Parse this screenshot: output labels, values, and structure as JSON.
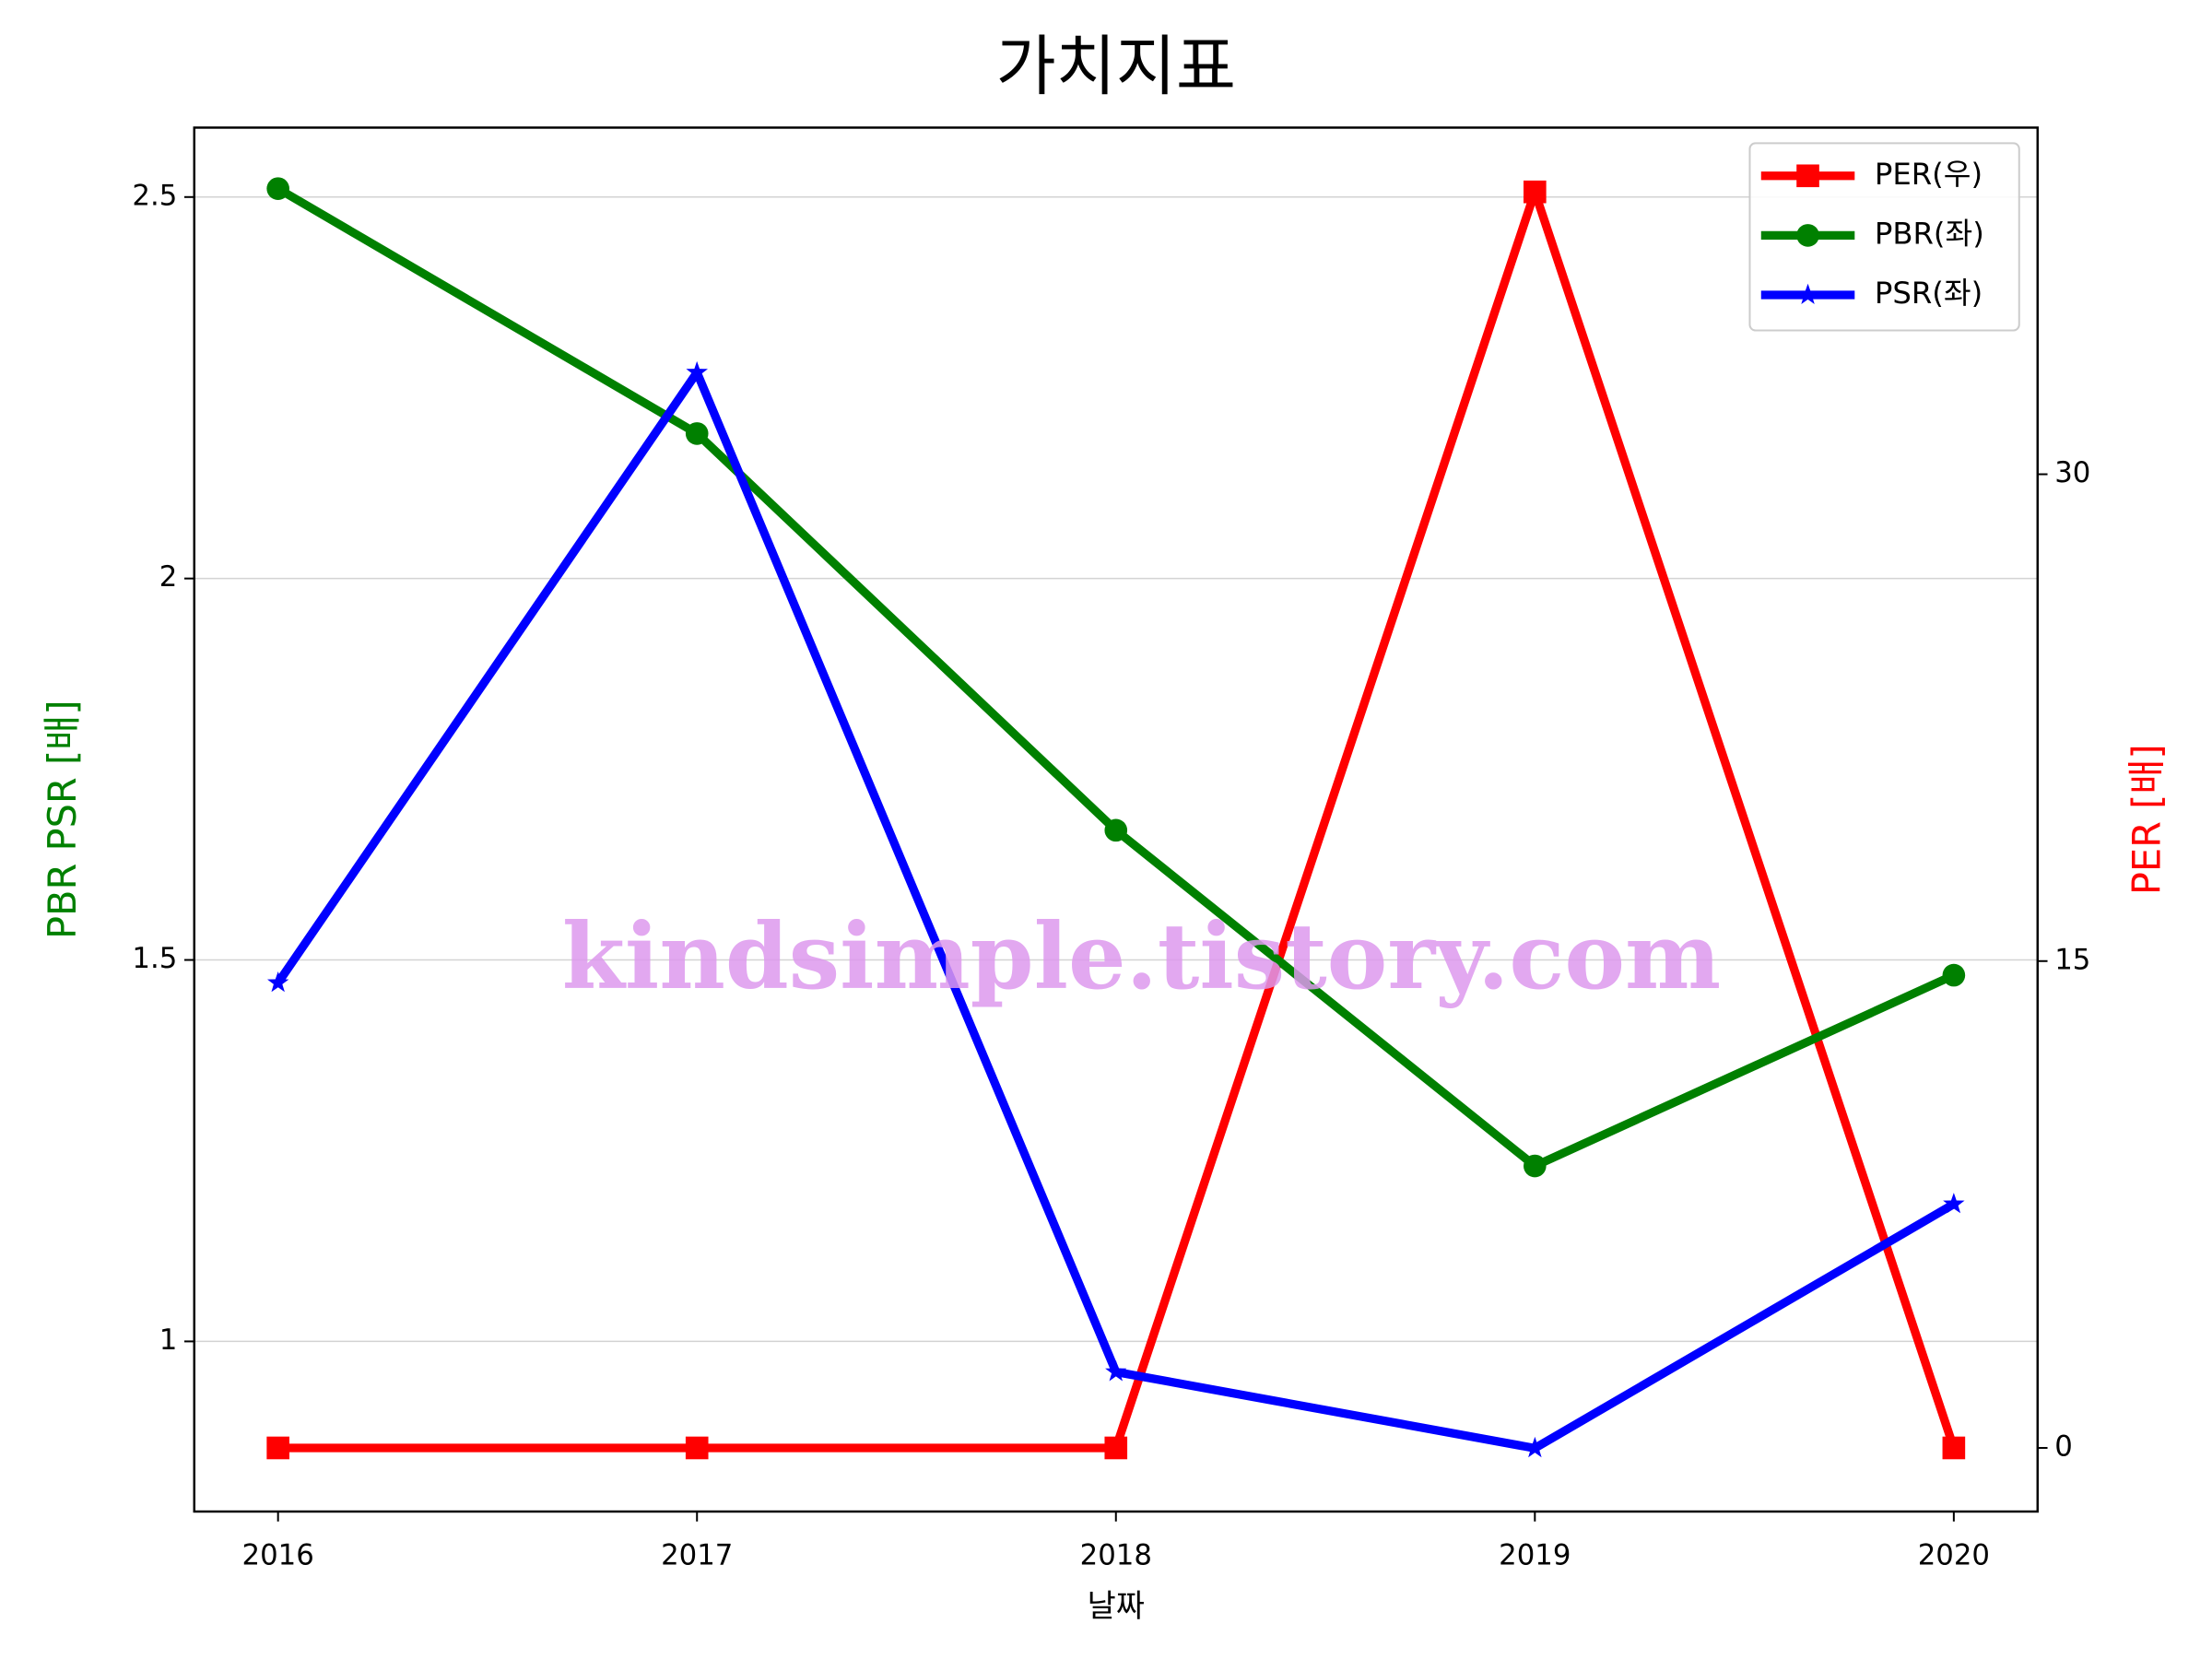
{
  "chart_data": {
    "type": "line",
    "title": "가치지표",
    "x_label": "날짜",
    "y_label": "PBR PSR [배]",
    "y2_label": "PER [배]",
    "watermark": "kindsimple.tistory.com",
    "x": [
      2016,
      2017,
      2018,
      2019,
      2020
    ],
    "xlim": [
      2015.8,
      2020.2
    ],
    "xticks": [
      2016,
      2017,
      2018,
      2019,
      2020
    ],
    "ylim": [
      0.777,
      2.591
    ],
    "yticks": [
      1.0,
      1.5,
      2.0,
      2.5
    ],
    "y2lim": [
      -1.96,
      40.68
    ],
    "y2ticks": [
      0,
      15,
      30
    ],
    "grid": true,
    "legend": "upper right",
    "y_label_color": "green",
    "y2_label_color": "red",
    "series": [
      {
        "name": "PER(우)",
        "color": "#ff0000",
        "marker": "square",
        "axis": "y2",
        "values": [
          0,
          0,
          0,
          38.7,
          0
        ]
      },
      {
        "name": "PBR(좌)",
        "color": "#008000",
        "marker": "circle",
        "values": [
          2.511,
          2.19,
          1.67,
          1.23,
          1.48
        ]
      },
      {
        "name": "PSR(좌)",
        "color": "#0000ff",
        "marker": "star",
        "values": [
          1.47,
          2.27,
          0.96,
          0.86,
          1.18
        ]
      }
    ]
  }
}
